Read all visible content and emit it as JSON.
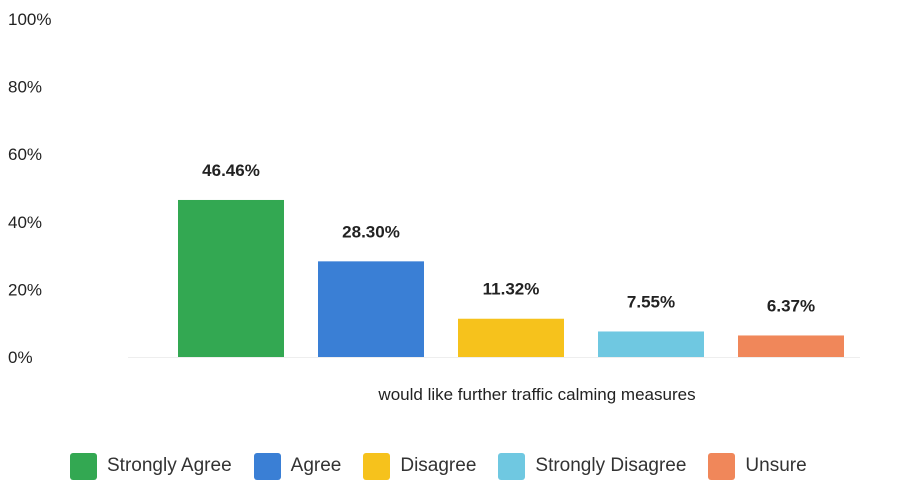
{
  "chart_data": {
    "type": "bar",
    "title": "",
    "xlabel": "",
    "ylabel": "",
    "ylim": [
      0,
      100
    ],
    "y_ticks": [
      "0%",
      "20%",
      "40%",
      "60%",
      "80%",
      "100%"
    ],
    "y_tick_values": [
      0,
      20,
      40,
      60,
      80,
      100
    ],
    "categories": [
      "would like further traffic calming measures"
    ],
    "series": [
      {
        "name": "Strongly Agree",
        "values": [
          46.46
        ],
        "label": "46.46%",
        "color": "#33a852"
      },
      {
        "name": "Agree",
        "values": [
          28.3
        ],
        "label": "28.30%",
        "color": "#3a7fd5"
      },
      {
        "name": "Disagree",
        "values": [
          11.32
        ],
        "label": "11.32%",
        "color": "#f6c21c"
      },
      {
        "name": "Strongly Disagree",
        "values": [
          7.55
        ],
        "label": "7.55%",
        "color": "#6fc8e1"
      },
      {
        "name": "Unsure",
        "values": [
          6.37
        ],
        "label": "6.37%",
        "color": "#f0875a"
      }
    ],
    "legend_position": "bottom",
    "grid": false
  }
}
